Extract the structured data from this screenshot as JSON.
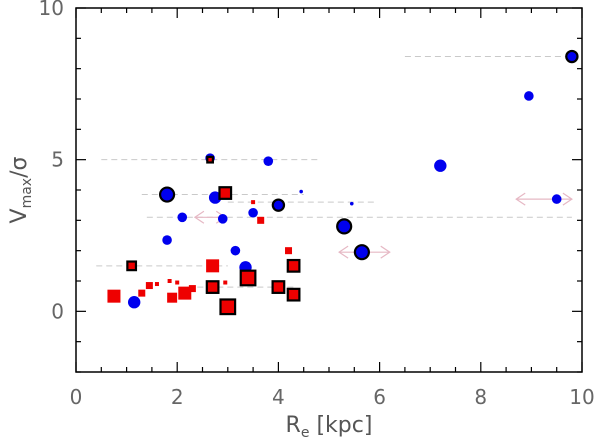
{
  "chart_data": {
    "type": "scatter",
    "xlabel": "Re [kpc]",
    "xlabel_parts": {
      "main": "R",
      "sub": "e",
      "rest": " [kpc]"
    },
    "ylabel": "Vmax/σ",
    "ylabel_parts": {
      "main": "V",
      "sub": "max",
      "rest": "/σ"
    },
    "xlim": [
      0,
      10
    ],
    "ylim": [
      -2,
      10
    ],
    "xticks": [
      0,
      2,
      4,
      6,
      8,
      10
    ],
    "yticks": [
      0,
      5,
      10
    ],
    "xtick_labels": [
      "0",
      "2",
      "4",
      "6",
      "8",
      "10"
    ],
    "ytick_labels": [
      "0",
      "5",
      "10"
    ],
    "colors": {
      "blue": "#0000ee",
      "red": "#ee0000",
      "outline": "#000000",
      "range": "#c9c9c9",
      "arrow": "#e6b8c4"
    },
    "series": [
      {
        "name": "blue circles",
        "marker": "circle",
        "color": "#0000ee",
        "points": [
          {
            "x": 9.8,
            "y": 8.4,
            "size": 3,
            "outline": true
          },
          {
            "x": 8.95,
            "y": 7.1,
            "size": 3,
            "outline": false
          },
          {
            "x": 7.2,
            "y": 4.8,
            "size": 4,
            "outline": false
          },
          {
            "x": 9.5,
            "y": 3.7,
            "size": 3,
            "outline": false
          },
          {
            "x": 5.3,
            "y": 2.8,
            "size": 4,
            "outline": true
          },
          {
            "x": 5.65,
            "y": 1.95,
            "size": 4,
            "outline": true
          },
          {
            "x": 4.45,
            "y": 3.95,
            "size": 1,
            "outline": false
          },
          {
            "x": 5.45,
            "y": 3.55,
            "size": 1,
            "outline": false
          },
          {
            "x": 4.0,
            "y": 3.5,
            "size": 3,
            "outline": true
          },
          {
            "x": 3.8,
            "y": 4.95,
            "size": 3,
            "outline": false
          },
          {
            "x": 2.65,
            "y": 5.05,
            "size": 3,
            "outline": false
          },
          {
            "x": 1.8,
            "y": 3.85,
            "size": 4,
            "outline": true
          },
          {
            "x": 2.75,
            "y": 3.75,
            "size": 4,
            "outline": false
          },
          {
            "x": 2.1,
            "y": 3.1,
            "size": 3,
            "outline": false
          },
          {
            "x": 2.9,
            "y": 3.05,
            "size": 3,
            "outline": false
          },
          {
            "x": 3.5,
            "y": 3.25,
            "size": 3,
            "outline": false
          },
          {
            "x": 1.8,
            "y": 2.35,
            "size": 3,
            "outline": false
          },
          {
            "x": 3.15,
            "y": 2.0,
            "size": 3,
            "outline": false
          },
          {
            "x": 3.35,
            "y": 1.45,
            "size": 4,
            "outline": false
          },
          {
            "x": 2.7,
            "y": 0.85,
            "size": 2,
            "outline": false
          },
          {
            "x": 1.15,
            "y": 0.3,
            "size": 4,
            "outline": false
          }
        ]
      },
      {
        "name": "red squares",
        "marker": "square",
        "color": "#ee0000",
        "points": [
          {
            "x": 2.65,
            "y": 5.0,
            "size": 1,
            "outline": true
          },
          {
            "x": 2.95,
            "y": 3.9,
            "size": 3,
            "outline": true
          },
          {
            "x": 3.5,
            "y": 3.6,
            "size": 1,
            "outline": false
          },
          {
            "x": 3.65,
            "y": 3.0,
            "size": 2,
            "outline": false
          },
          {
            "x": 4.2,
            "y": 2.0,
            "size": 2,
            "outline": false
          },
          {
            "x": 4.3,
            "y": 1.5,
            "size": 3,
            "outline": true
          },
          {
            "x": 1.1,
            "y": 1.5,
            "size": 2,
            "outline": true
          },
          {
            "x": 2.7,
            "y": 1.5,
            "size": 4,
            "outline": false
          },
          {
            "x": 3.4,
            "y": 1.1,
            "size": 4,
            "outline": true
          },
          {
            "x": 2.95,
            "y": 0.95,
            "size": 1,
            "outline": false
          },
          {
            "x": 4.05,
            "y": 0.95,
            "size": 1,
            "outline": false
          },
          {
            "x": 2.7,
            "y": 0.8,
            "size": 3,
            "outline": true
          },
          {
            "x": 4.0,
            "y": 0.8,
            "size": 3,
            "outline": true
          },
          {
            "x": 4.3,
            "y": 0.55,
            "size": 3,
            "outline": true
          },
          {
            "x": 3.0,
            "y": 0.15,
            "size": 4,
            "outline": true
          },
          {
            "x": 0.75,
            "y": 0.5,
            "size": 4,
            "outline": false
          },
          {
            "x": 1.3,
            "y": 0.6,
            "size": 2,
            "outline": false
          },
          {
            "x": 1.45,
            "y": 0.85,
            "size": 2,
            "outline": false
          },
          {
            "x": 1.9,
            "y": 0.45,
            "size": 3,
            "outline": false
          },
          {
            "x": 2.15,
            "y": 0.6,
            "size": 4,
            "outline": false
          },
          {
            "x": 2.3,
            "y": 0.75,
            "size": 2,
            "outline": false
          },
          {
            "x": 1.85,
            "y": 1.0,
            "size": 1,
            "outline": false
          },
          {
            "x": 2.0,
            "y": 0.95,
            "size": 1,
            "outline": false
          },
          {
            "x": 1.6,
            "y": 0.9,
            "size": 1,
            "outline": false
          }
        ]
      }
    ],
    "ranges": [
      {
        "y": 8.4,
        "x1": 6.5,
        "x2": 9.8
      },
      {
        "y": 5.0,
        "x1": 0.5,
        "x2": 4.8
      },
      {
        "y": 3.85,
        "x1": 1.3,
        "x2": 4.5
      },
      {
        "y": 3.6,
        "x1": 3.0,
        "x2": 5.9
      },
      {
        "y": 3.1,
        "x1": 1.4,
        "x2": 9.8
      },
      {
        "y": 1.5,
        "x1": 0.4,
        "x2": 3.0
      },
      {
        "y": 0.8,
        "x1": 2.2,
        "x2": 4.3
      }
    ],
    "arrows": [
      {
        "y": 3.1,
        "x1": 2.35,
        "x2": 2.95
      },
      {
        "y": 1.95,
        "x1": 5.2,
        "x2": 6.2
      },
      {
        "y": 3.7,
        "x1": 8.7,
        "x2": 9.8
      }
    ]
  }
}
